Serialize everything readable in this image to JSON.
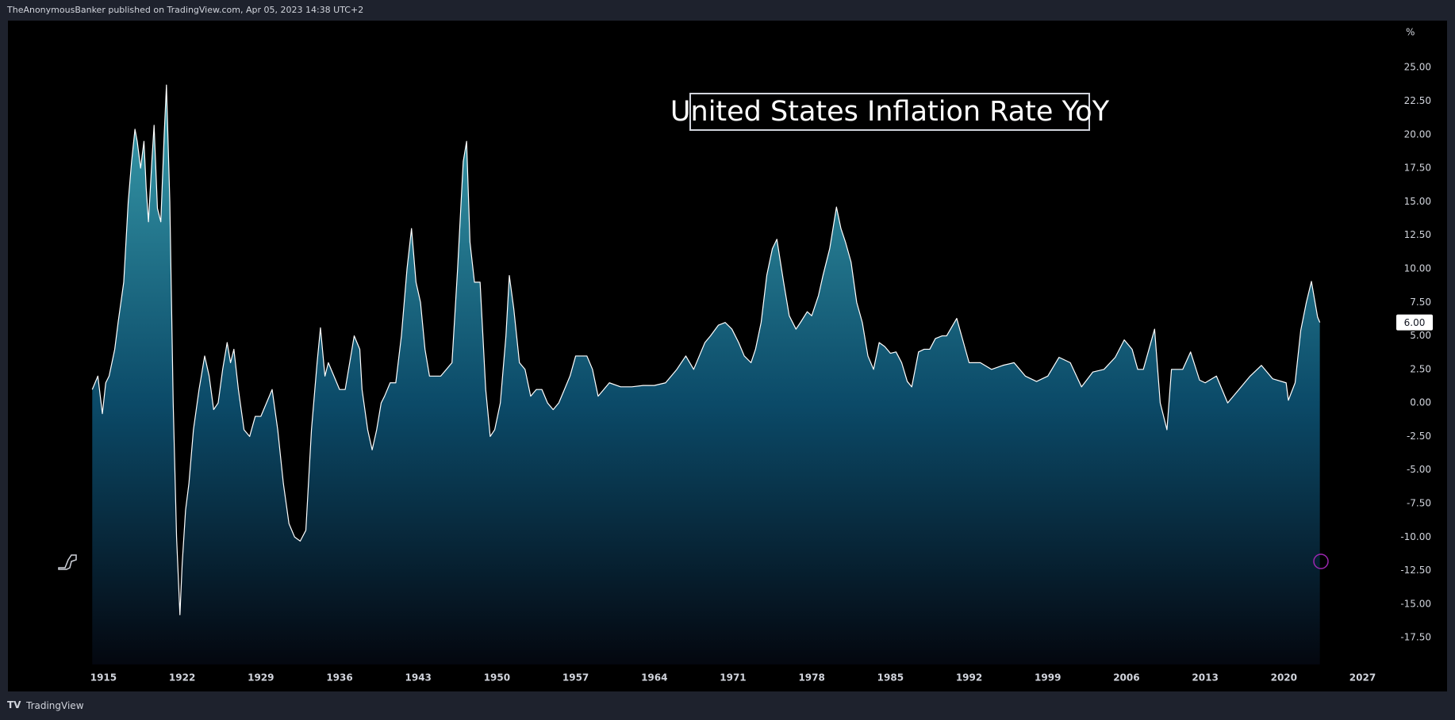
{
  "header": {
    "text": "TheAnonymousBanker published on TradingView.com, Apr 05, 2023 14:38 UTC+2"
  },
  "footer": {
    "text": "TradingView"
  },
  "chart_data": {
    "type": "area",
    "title": "United States Inflation Rate YoY",
    "y_unit": "%",
    "line_color": "#ffffff",
    "fill_colors": [
      "#3a9fae",
      "#0b4a68",
      "#04070f"
    ],
    "xlim": [
      1906.5,
      2030
    ],
    "ylim": [
      -19.5,
      28.5
    ],
    "xticks": [
      1915,
      1922,
      1929,
      1936,
      1943,
      1950,
      1957,
      1964,
      1971,
      1978,
      1985,
      1992,
      1999,
      2006,
      2013,
      2020,
      2027
    ],
    "yticks": [
      {
        "value": 25,
        "label": "25.00"
      },
      {
        "value": 22.5,
        "label": "22.50"
      },
      {
        "value": 20,
        "label": "20.00"
      },
      {
        "value": 17.5,
        "label": "17.50"
      },
      {
        "value": 15,
        "label": "15.00"
      },
      {
        "value": 12.5,
        "label": "12.50"
      },
      {
        "value": 10,
        "label": "10.00"
      },
      {
        "value": 7.5,
        "label": "7.50"
      },
      {
        "value": 5,
        "label": "5.00"
      },
      {
        "value": 2.5,
        "label": "2.50"
      },
      {
        "value": 0,
        "label": "0.00"
      },
      {
        "value": -2.5,
        "label": "-2.50"
      },
      {
        "value": -5,
        "label": "-5.00"
      },
      {
        "value": -7.5,
        "label": "-7.50"
      },
      {
        "value": -10,
        "label": "-10.00"
      },
      {
        "value": -12.5,
        "label": "-12.50"
      },
      {
        "value": -15,
        "label": "-15.00"
      },
      {
        "value": -17.5,
        "label": "-17.50"
      }
    ],
    "last_label": {
      "value": 6.0,
      "label": "6.00"
    },
    "x": [
      1914.0,
      1914.5,
      1914.9,
      1915.2,
      1915.5,
      1916,
      1916.3,
      1916.8,
      1917.2,
      1917.5,
      1917.8,
      1918,
      1918.3,
      1918.6,
      1918.8,
      1919,
      1919.3,
      1919.5,
      1919.8,
      1920.1,
      1920.4,
      1920.6,
      1920.9,
      1921.2,
      1921.5,
      1921.8,
      1922.0,
      1922.3,
      1922.6,
      1923,
      1923.5,
      1924,
      1924.4,
      1924.8,
      1925.2,
      1925.6,
      1926,
      1926.3,
      1926.6,
      1927,
      1927.5,
      1928,
      1928.5,
      1929,
      1929.5,
      1930,
      1930.5,
      1931,
      1931.5,
      1932,
      1932.5,
      1933,
      1933.5,
      1934,
      1934.3,
      1934.7,
      1935,
      1935.5,
      1936,
      1936.5,
      1937,
      1937.3,
      1937.8,
      1938,
      1938.5,
      1938.9,
      1939.3,
      1939.7,
      1940,
      1940.5,
      1941,
      1941.5,
      1942,
      1942.4,
      1942.8,
      1943.2,
      1943.6,
      1944,
      1944.5,
      1945,
      1945.5,
      1946,
      1946.5,
      1947,
      1947.3,
      1947.6,
      1948,
      1948.5,
      1949,
      1949.4,
      1949.8,
      1950.3,
      1950.8,
      1951.1,
      1951.5,
      1952,
      1952.5,
      1953,
      1953.5,
      1954,
      1954.5,
      1955,
      1955.5,
      1956,
      1956.5,
      1957,
      1957.5,
      1958,
      1958.5,
      1959,
      1959.5,
      1960,
      1961,
      1962,
      1963,
      1964,
      1965,
      1966,
      1966.8,
      1967.5,
      1968,
      1968.5,
      1969,
      1969.7,
      1970.3,
      1970.9,
      1971.5,
      1972,
      1972.6,
      1973,
      1973.5,
      1974,
      1974.5,
      1974.9,
      1975.5,
      1976,
      1976.6,
      1977,
      1977.6,
      1978,
      1978.6,
      1979,
      1979.6,
      1980.2,
      1980.6,
      1981,
      1981.5,
      1982,
      1982.5,
      1983,
      1983.5,
      1984,
      1984.5,
      1985,
      1985.5,
      1986,
      1986.5,
      1986.9,
      1987.5,
      1988,
      1988.5,
      1989,
      1989.6,
      1990,
      1990.9,
      1991.5,
      1992,
      1993,
      1994,
      1995,
      1996,
      1997,
      1998,
      1999,
      2000,
      2001,
      2002,
      2003,
      2004,
      2005,
      2005.8,
      2006.5,
      2007,
      2007.5,
      2008.5,
      2009,
      2009.6,
      2010,
      2011,
      2011.7,
      2012.5,
      2013,
      2014,
      2015,
      2016,
      2017,
      2018,
      2019,
      2020.2,
      2020.4,
      2021,
      2021.5,
      2022.0,
      2022.45,
      2023,
      2023.2
    ],
    "values": [
      1.0,
      2.0,
      -0.8,
      1.5,
      2,
      4,
      6,
      9,
      15,
      18,
      20.4,
      19.5,
      17.5,
      19.5,
      16,
      13.5,
      18,
      20.7,
      14.5,
      13.5,
      20,
      23.7,
      15,
      0,
      -10,
      -15.8,
      -12,
      -8,
      -6,
      -2,
      1,
      3.5,
      2,
      -0.5,
      0,
      2.5,
      4.5,
      3,
      4,
      1,
      -2,
      -2.5,
      -1,
      -1,
      0,
      1,
      -2,
      -6,
      -9,
      -10,
      -10.3,
      -9.5,
      -2,
      3,
      5.6,
      2,
      3,
      2,
      1,
      1,
      3.5,
      5,
      4,
      1,
      -2,
      -3.5,
      -2,
      0,
      0.5,
      1.5,
      1.5,
      5,
      10,
      13,
      9,
      7.5,
      4,
      2,
      2,
      2,
      2.5,
      3,
      10,
      18,
      19.5,
      12,
      9,
      9,
      1,
      -2.5,
      -2,
      0,
      5,
      9.5,
      7,
      3,
      2.5,
      0.5,
      1,
      1,
      0,
      -0.5,
      0,
      1,
      2,
      3.5,
      3.5,
      3.5,
      2.5,
      0.5,
      1,
      1.5,
      1.2,
      1.2,
      1.3,
      1.3,
      1.5,
      2.5,
      3.5,
      2.5,
      3.5,
      4.5,
      5,
      5.8,
      6,
      5.5,
      4.5,
      3.5,
      3,
      4,
      6,
      9.5,
      11.5,
      12.2,
      9,
      6.5,
      5.5,
      6,
      6.8,
      6.5,
      8,
      9.5,
      11.5,
      14.6,
      13,
      12,
      10.5,
      7.5,
      6,
      3.5,
      2.5,
      4.5,
      4.2,
      3.7,
      3.8,
      3,
      1.6,
      1.2,
      3.8,
      4,
      4,
      4.8,
      5,
      5,
      6.3,
      4.5,
      3,
      3,
      2.5,
      2.8,
      3,
      2,
      1.6,
      2,
      3.4,
      3,
      1.2,
      2.3,
      2.5,
      3.4,
      4.7,
      4,
      2.5,
      2.5,
      5.5,
      0,
      -2,
      2.5,
      2.5,
      3.8,
      1.7,
      1.5,
      2,
      0,
      1,
      2,
      2.8,
      1.8,
      1.5,
      0.2,
      1.5,
      5.4,
      7.5,
      9.06,
      6.4,
      6.0
    ]
  }
}
